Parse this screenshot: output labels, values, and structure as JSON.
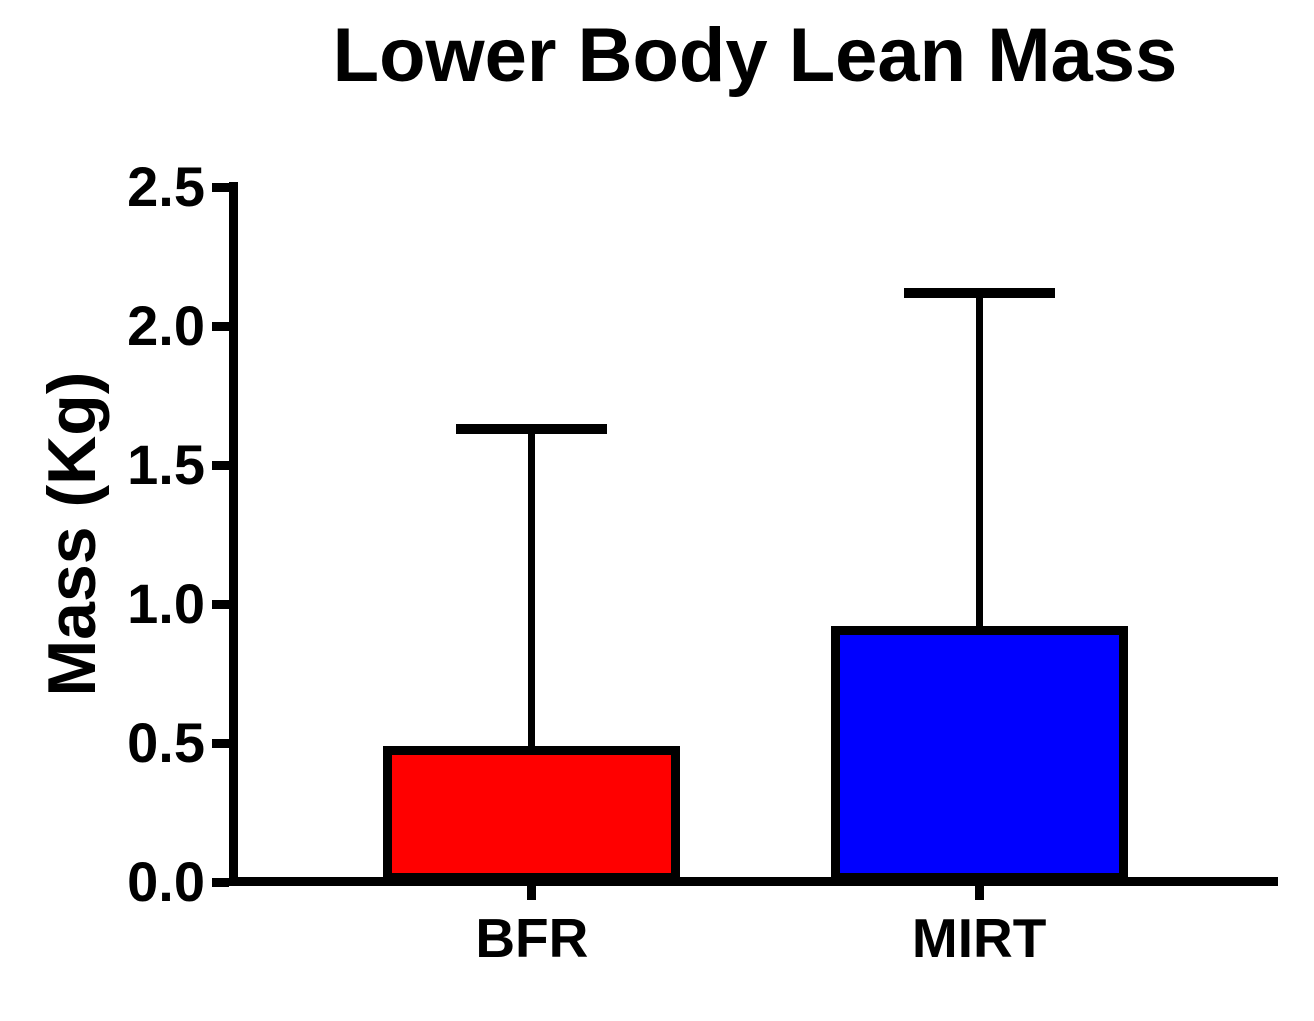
{
  "chart_data": {
    "type": "bar",
    "title": "Lower Body Lean Mass",
    "xlabel": "",
    "ylabel": "Mass (Kg)",
    "categories": [
      "BFR",
      "MIRT"
    ],
    "values": [
      0.49,
      0.92
    ],
    "errors_sd_upper": [
      1.14,
      1.2
    ],
    "error_bar_tops": [
      1.63,
      2.12
    ],
    "bar_colors": [
      "#FF0000",
      "#0000FF"
    ],
    "bar_border_color": "#000000",
    "axis_color": "#000000",
    "background_color": "#FFFFFF",
    "ylim": [
      0,
      2.5
    ],
    "yticks": [
      0,
      0.5,
      1.0,
      1.5,
      2.0,
      2.5
    ],
    "ytick_labels": [
      "0.0",
      "0.5",
      "1.0",
      "1.5",
      "2.0",
      "2.5"
    ],
    "grid": false,
    "legend": "none",
    "bar_width_frac": 0.284
  }
}
